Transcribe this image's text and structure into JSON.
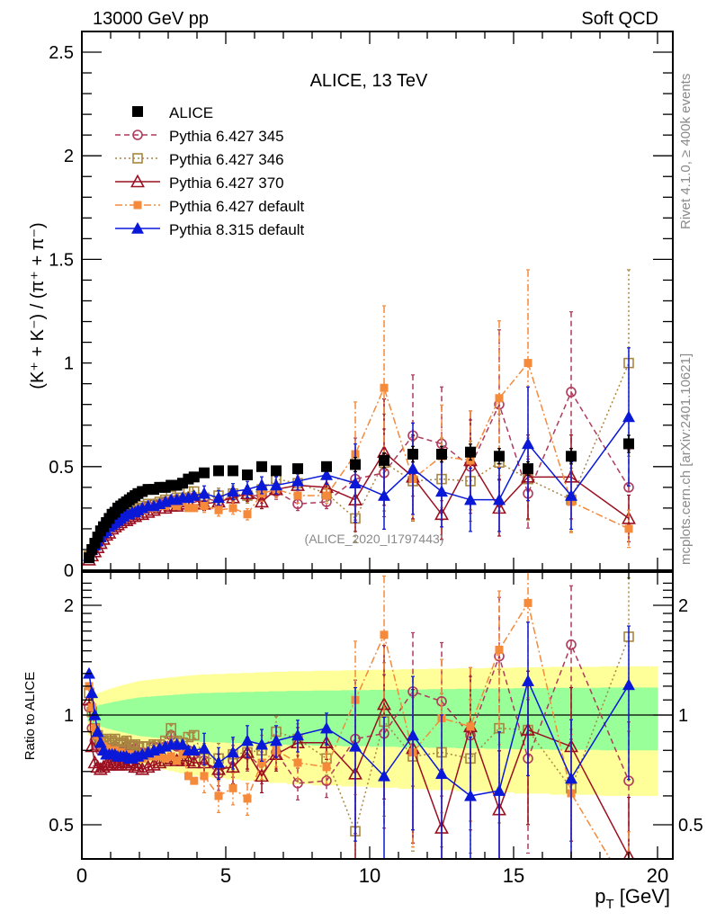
{
  "header": {
    "left": "13000 GeV pp",
    "right": "Soft QCD"
  },
  "side_labels": {
    "rivet": "Rivet 4.1.0, ≥ 400k events",
    "mcplots": "mcplots.cern.ch [arXiv:2401.10621]"
  },
  "chart_data": [
    {
      "type": "scatter",
      "panel": "main",
      "title": "ALICE, 13 TeV",
      "xlabel": "p_T [GeV]",
      "ylabel": "(K⁺ + K⁻) / (π⁺ + π⁻)",
      "xlim": [
        0,
        20.5
      ],
      "ylim": [
        0,
        2.6
      ],
      "yticks": [
        "0",
        "0.5",
        "1",
        "1.5",
        "2",
        "2.5"
      ],
      "xticks": [
        "0",
        "5",
        "10",
        "15",
        "20"
      ],
      "annotation": "(ALICE_2020_I1797443)",
      "legend_position": "top-left",
      "x": [
        0.25,
        0.35,
        0.45,
        0.55,
        0.65,
        0.75,
        0.85,
        0.95,
        1.05,
        1.15,
        1.25,
        1.35,
        1.45,
        1.55,
        1.65,
        1.75,
        1.85,
        1.95,
        2.1,
        2.3,
        2.5,
        2.7,
        2.9,
        3.1,
        3.3,
        3.5,
        3.7,
        3.9,
        4.25,
        4.75,
        5.25,
        5.75,
        6.25,
        6.75,
        7.5,
        8.5,
        9.5,
        10.5,
        11.5,
        12.5,
        13.5,
        14.5,
        15.5,
        17,
        19
      ],
      "series": [
        {
          "name": "ALICE",
          "color": "#000000",
          "marker": "filled-square",
          "line": "none",
          "values": [
            0.06,
            0.1,
            0.13,
            0.16,
            0.19,
            0.21,
            0.23,
            0.25,
            0.27,
            0.28,
            0.3,
            0.31,
            0.32,
            0.33,
            0.34,
            0.35,
            0.36,
            0.37,
            0.38,
            0.39,
            0.39,
            0.4,
            0.4,
            0.41,
            0.41,
            0.42,
            0.44,
            0.45,
            0.47,
            0.48,
            0.48,
            0.46,
            0.5,
            0.48,
            0.49,
            0.5,
            0.51,
            0.53,
            0.56,
            0.56,
            0.57,
            0.55,
            0.49,
            0.55,
            0.61
          ]
        },
        {
          "name": "Pythia 6.427 345",
          "color": "#b03a5b",
          "marker": "open-circle",
          "line": "dashed",
          "values": [
            0.06,
            0.09,
            0.11,
            0.13,
            0.15,
            0.17,
            0.19,
            0.2,
            0.22,
            0.23,
            0.24,
            0.25,
            0.26,
            0.27,
            0.27,
            0.28,
            0.29,
            0.29,
            0.3,
            0.31,
            0.32,
            0.32,
            0.33,
            0.33,
            0.34,
            0.34,
            0.35,
            0.35,
            0.35,
            0.33,
            0.36,
            0.36,
            0.36,
            0.38,
            0.32,
            0.33,
            0.44,
            0.47,
            0.65,
            0.61,
            0.5,
            0.8,
            0.37,
            0.86,
            0.4
          ]
        },
        {
          "name": "Pythia 6.427 346",
          "color": "#a88640",
          "marker": "open-square",
          "line": "dotted",
          "values": [
            0.07,
            0.1,
            0.12,
            0.14,
            0.16,
            0.18,
            0.2,
            0.21,
            0.23,
            0.24,
            0.25,
            0.26,
            0.27,
            0.28,
            0.28,
            0.29,
            0.3,
            0.3,
            0.31,
            0.32,
            0.32,
            0.33,
            0.34,
            0.36,
            0.35,
            0.35,
            0.38,
            0.38,
            0.35,
            0.36,
            0.37,
            0.36,
            0.39,
            0.44,
            0.42,
            0.37,
            0.25,
            0.52,
            0.43,
            0.44,
            0.43,
            0.52,
            0.44,
            0.34,
            1.0
          ]
        },
        {
          "name": "Pythia 6.427 370",
          "color": "#9b1020",
          "marker": "open-triangle",
          "line": "solid",
          "values": [
            0.05,
            0.07,
            0.09,
            0.11,
            0.13,
            0.15,
            0.17,
            0.18,
            0.2,
            0.21,
            0.22,
            0.23,
            0.24,
            0.24,
            0.25,
            0.26,
            0.26,
            0.27,
            0.27,
            0.28,
            0.29,
            0.3,
            0.3,
            0.31,
            0.31,
            0.32,
            0.33,
            0.34,
            0.32,
            0.33,
            0.35,
            0.37,
            0.33,
            0.39,
            0.41,
            0.4,
            0.34,
            0.57,
            0.45,
            0.27,
            0.53,
            0.3,
            0.45,
            0.45,
            0.25
          ]
        },
        {
          "name": "Pythia 6.427 default",
          "color": "#f58a3a",
          "marker": "filled-square",
          "line": "dash-dot",
          "values": [
            0.07,
            0.1,
            0.12,
            0.14,
            0.16,
            0.18,
            0.19,
            0.2,
            0.22,
            0.23,
            0.24,
            0.25,
            0.25,
            0.26,
            0.27,
            0.27,
            0.28,
            0.28,
            0.29,
            0.3,
            0.3,
            0.31,
            0.31,
            0.32,
            0.31,
            0.33,
            0.3,
            0.3,
            0.31,
            0.29,
            0.3,
            0.27,
            0.37,
            0.39,
            0.36,
            0.36,
            0.56,
            0.88,
            0.44,
            0.55,
            0.53,
            0.83,
            1.0,
            0.33,
            0.2
          ]
        },
        {
          "name": "Pythia 8.315 default",
          "color": "#0a18d8",
          "marker": "filled-triangle",
          "line": "solid",
          "values": [
            0.07,
            0.1,
            0.12,
            0.14,
            0.16,
            0.18,
            0.19,
            0.21,
            0.22,
            0.23,
            0.24,
            0.25,
            0.26,
            0.27,
            0.27,
            0.28,
            0.28,
            0.29,
            0.3,
            0.31,
            0.31,
            0.32,
            0.33,
            0.34,
            0.34,
            0.35,
            0.35,
            0.36,
            0.37,
            0.35,
            0.38,
            0.39,
            0.41,
            0.41,
            0.43,
            0.46,
            0.42,
            0.36,
            0.49,
            0.38,
            0.34,
            0.34,
            0.61,
            0.36,
            0.74
          ]
        }
      ]
    },
    {
      "type": "scatter",
      "panel": "ratio",
      "ylabel": "Ratio to ALICE",
      "xlabel": "p_T [GeV]",
      "yscale": "log",
      "ylim": [
        0.42,
        2.38
      ],
      "yticks": [
        "0.5",
        "1",
        "2"
      ],
      "xticks": [
        "0",
        "5",
        "10",
        "15",
        "20"
      ],
      "reference_line": 1,
      "bands": [
        {
          "name": "stat uncertainty",
          "color": "#99ff99",
          "half_width_rel": [
            0.04,
            0.2
          ]
        },
        {
          "name": "total uncertainty",
          "color": "#ffff99",
          "half_width_rel": [
            0.12,
            0.4
          ]
        }
      ],
      "series": [
        {
          "name": "Pythia 6.427 345",
          "values": [
            1.05,
            0.92,
            0.85,
            0.82,
            0.8,
            0.8,
            0.81,
            0.8,
            0.81,
            0.82,
            0.8,
            0.8,
            0.81,
            0.82,
            0.8,
            0.8,
            0.81,
            0.79,
            0.79,
            0.79,
            0.82,
            0.8,
            0.82,
            0.88,
            0.82,
            0.81,
            0.8,
            0.78,
            0.75,
            0.69,
            0.75,
            0.78,
            0.72,
            0.79,
            0.65,
            0.66,
            0.86,
            0.89,
            1.16,
            1.09,
            0.88,
            1.45,
            0.76,
            1.56,
            0.66
          ]
        },
        {
          "name": "Pythia 6.427 346",
          "values": [
            1.15,
            1.02,
            0.92,
            0.88,
            0.85,
            0.85,
            0.86,
            0.84,
            0.85,
            0.86,
            0.84,
            0.84,
            0.84,
            0.85,
            0.83,
            0.83,
            0.83,
            0.82,
            0.82,
            0.82,
            0.83,
            0.83,
            0.85,
            0.92,
            0.85,
            0.84,
            0.87,
            0.88,
            0.76,
            0.76,
            0.78,
            0.79,
            0.8,
            0.9,
            0.86,
            0.76,
            0.48,
            0.96,
            0.77,
            0.79,
            0.76,
            0.92,
            0.91,
            0.63,
            1.64
          ]
        },
        {
          "name": "Pythia 6.427 370",
          "values": [
            1.1,
            0.82,
            0.74,
            0.72,
            0.71,
            0.72,
            0.73,
            0.73,
            0.73,
            0.74,
            0.73,
            0.73,
            0.74,
            0.73,
            0.74,
            0.74,
            0.72,
            0.72,
            0.71,
            0.72,
            0.73,
            0.74,
            0.75,
            0.76,
            0.75,
            0.75,
            0.75,
            0.74,
            0.74,
            0.71,
            0.72,
            0.79,
            0.68,
            0.78,
            0.84,
            0.84,
            0.69,
            1.07,
            0.81,
            0.49,
            0.93,
            0.55,
            0.91,
            0.82,
            0.41
          ]
        },
        {
          "name": "Pythia 6.427 default",
          "values": [
            1.2,
            1.05,
            0.92,
            0.88,
            0.84,
            0.82,
            0.81,
            0.8,
            0.8,
            0.8,
            0.79,
            0.79,
            0.78,
            0.78,
            0.78,
            0.77,
            0.77,
            0.76,
            0.76,
            0.77,
            0.77,
            0.77,
            0.76,
            0.77,
            0.75,
            0.78,
            0.68,
            0.66,
            0.68,
            0.6,
            0.63,
            0.59,
            0.74,
            0.8,
            0.74,
            0.72,
            1.1,
            1.66,
            0.79,
            0.98,
            0.93,
            1.51,
            2.03,
            0.61,
            0.33
          ]
        },
        {
          "name": "Pythia 8.315 default",
          "values": [
            1.3,
            1.15,
            1.0,
            0.9,
            0.84,
            0.8,
            0.78,
            0.78,
            0.78,
            0.78,
            0.77,
            0.77,
            0.77,
            0.77,
            0.76,
            0.76,
            0.77,
            0.77,
            0.78,
            0.79,
            0.8,
            0.81,
            0.82,
            0.83,
            0.83,
            0.83,
            0.8,
            0.8,
            0.81,
            0.74,
            0.79,
            0.85,
            0.83,
            0.85,
            0.88,
            0.92,
            0.82,
            0.68,
            0.88,
            0.69,
            0.6,
            0.62,
            1.24,
            0.67,
            1.21
          ]
        }
      ]
    }
  ]
}
